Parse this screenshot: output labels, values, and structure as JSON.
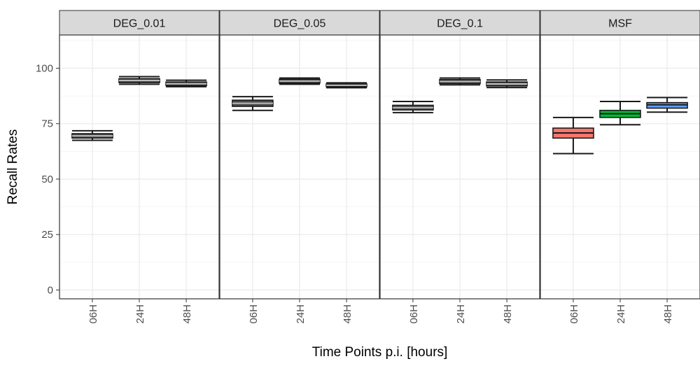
{
  "chart_data": {
    "type": "boxplot",
    "xlabel": "Time Points p.i. [hours]",
    "ylabel": "Recall Rates",
    "ylim": [
      -4,
      115
    ],
    "yticks": [
      0,
      25,
      50,
      75,
      100
    ],
    "grid": true,
    "categories": [
      "06H",
      "24H",
      "48H"
    ],
    "panels": [
      {
        "name": "DEG_0.01",
        "boxes": [
          {
            "category": "06H",
            "min": 67.5,
            "q1": 68.5,
            "median": 69.5,
            "q3": 70.5,
            "max": 71.8,
            "fill": "#000000"
          },
          {
            "category": "24H",
            "min": 92.8,
            "q1": 93.5,
            "median": 94.5,
            "q3": 95.3,
            "max": 96.2,
            "fill": "#000000"
          },
          {
            "category": "48H",
            "min": 91.7,
            "q1": 92.2,
            "median": 93.0,
            "q3": 93.8,
            "max": 94.6,
            "fill": "#000000"
          }
        ]
      },
      {
        "name": "DEG_0.05",
        "boxes": [
          {
            "category": "06H",
            "min": 81.0,
            "q1": 82.8,
            "median": 84.2,
            "q3": 85.6,
            "max": 87.2,
            "fill": "#000000"
          },
          {
            "category": "24H",
            "min": 92.8,
            "q1": 93.3,
            "median": 94.2,
            "q3": 95.0,
            "max": 95.6,
            "fill": "#000000"
          },
          {
            "category": "48H",
            "min": 91.2,
            "q1": 91.7,
            "median": 92.3,
            "q3": 92.9,
            "max": 93.4,
            "fill": "#000000"
          }
        ]
      },
      {
        "name": "DEG_0.1",
        "boxes": [
          {
            "category": "06H",
            "min": 80.0,
            "q1": 81.2,
            "median": 82.2,
            "q3": 83.3,
            "max": 85.0,
            "fill": "#000000"
          },
          {
            "category": "24H",
            "min": 92.5,
            "q1": 93.1,
            "median": 94.0,
            "q3": 94.9,
            "max": 95.6,
            "fill": "#000000"
          },
          {
            "category": "48H",
            "min": 91.3,
            "q1": 92.0,
            "median": 92.9,
            "q3": 93.8,
            "max": 94.7,
            "fill": "#000000"
          }
        ]
      },
      {
        "name": "MSF",
        "boxes": [
          {
            "category": "06H",
            "min": 61.5,
            "q1": 68.5,
            "median": 70.8,
            "q3": 73.0,
            "max": 77.8,
            "fill": "#F8766D"
          },
          {
            "category": "24H",
            "min": 74.5,
            "q1": 77.8,
            "median": 79.5,
            "q3": 81.0,
            "max": 85.0,
            "fill": "#00BA38"
          },
          {
            "category": "48H",
            "min": 80.2,
            "q1": 82.0,
            "median": 83.5,
            "q3": 84.5,
            "max": 86.8,
            "fill": "#619CFF"
          }
        ]
      }
    ]
  }
}
